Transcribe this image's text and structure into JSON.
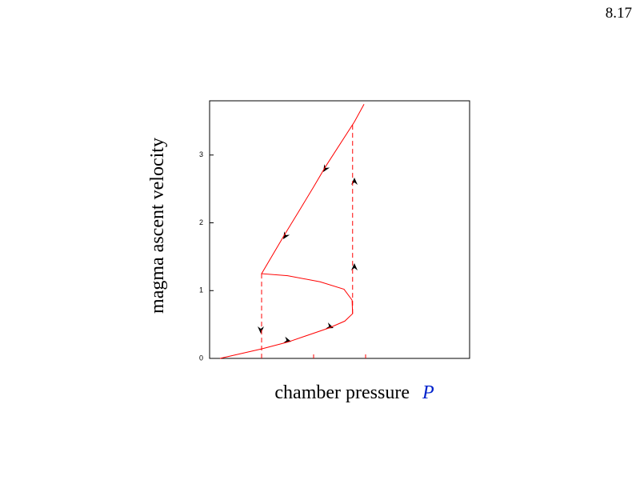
{
  "page_number": "8.17",
  "chart_data": {
    "type": "line",
    "xlabel": "chamber pressure",
    "xlabel_symbol": "P",
    "ylabel": "magma ascent velocity",
    "xlim": [
      0,
      1
    ],
    "ylim": [
      0,
      3.8
    ],
    "xticks": [
      {
        "value": 0.2,
        "label": null
      },
      {
        "value": 0.4,
        "label": null
      },
      {
        "value": 0.6,
        "label": null
      }
    ],
    "yticks": [
      0,
      1,
      2,
      3
    ],
    "series": [
      {
        "color": "#ff0000",
        "x": [
          0.04,
          0.2,
          0.3,
          0.46,
          0.52,
          0.55,
          0.548,
          0.517,
          0.425,
          0.3,
          0.2,
          0.286,
          0.348,
          0.4,
          0.446,
          0.557,
          0.594
        ],
        "values": [
          0,
          0.14,
          0.24,
          0.45,
          0.55,
          0.66,
          0.86,
          1.02,
          1.13,
          1.22,
          1.25,
          1.81,
          2.2,
          2.53,
          2.83,
          3.49,
          3.75
        ]
      }
    ],
    "jumps": [
      {
        "x": 0.2,
        "y": [
          1.25,
          0
        ]
      },
      {
        "x": 0.55,
        "y": [
          0.66,
          3.49
        ]
      }
    ]
  }
}
